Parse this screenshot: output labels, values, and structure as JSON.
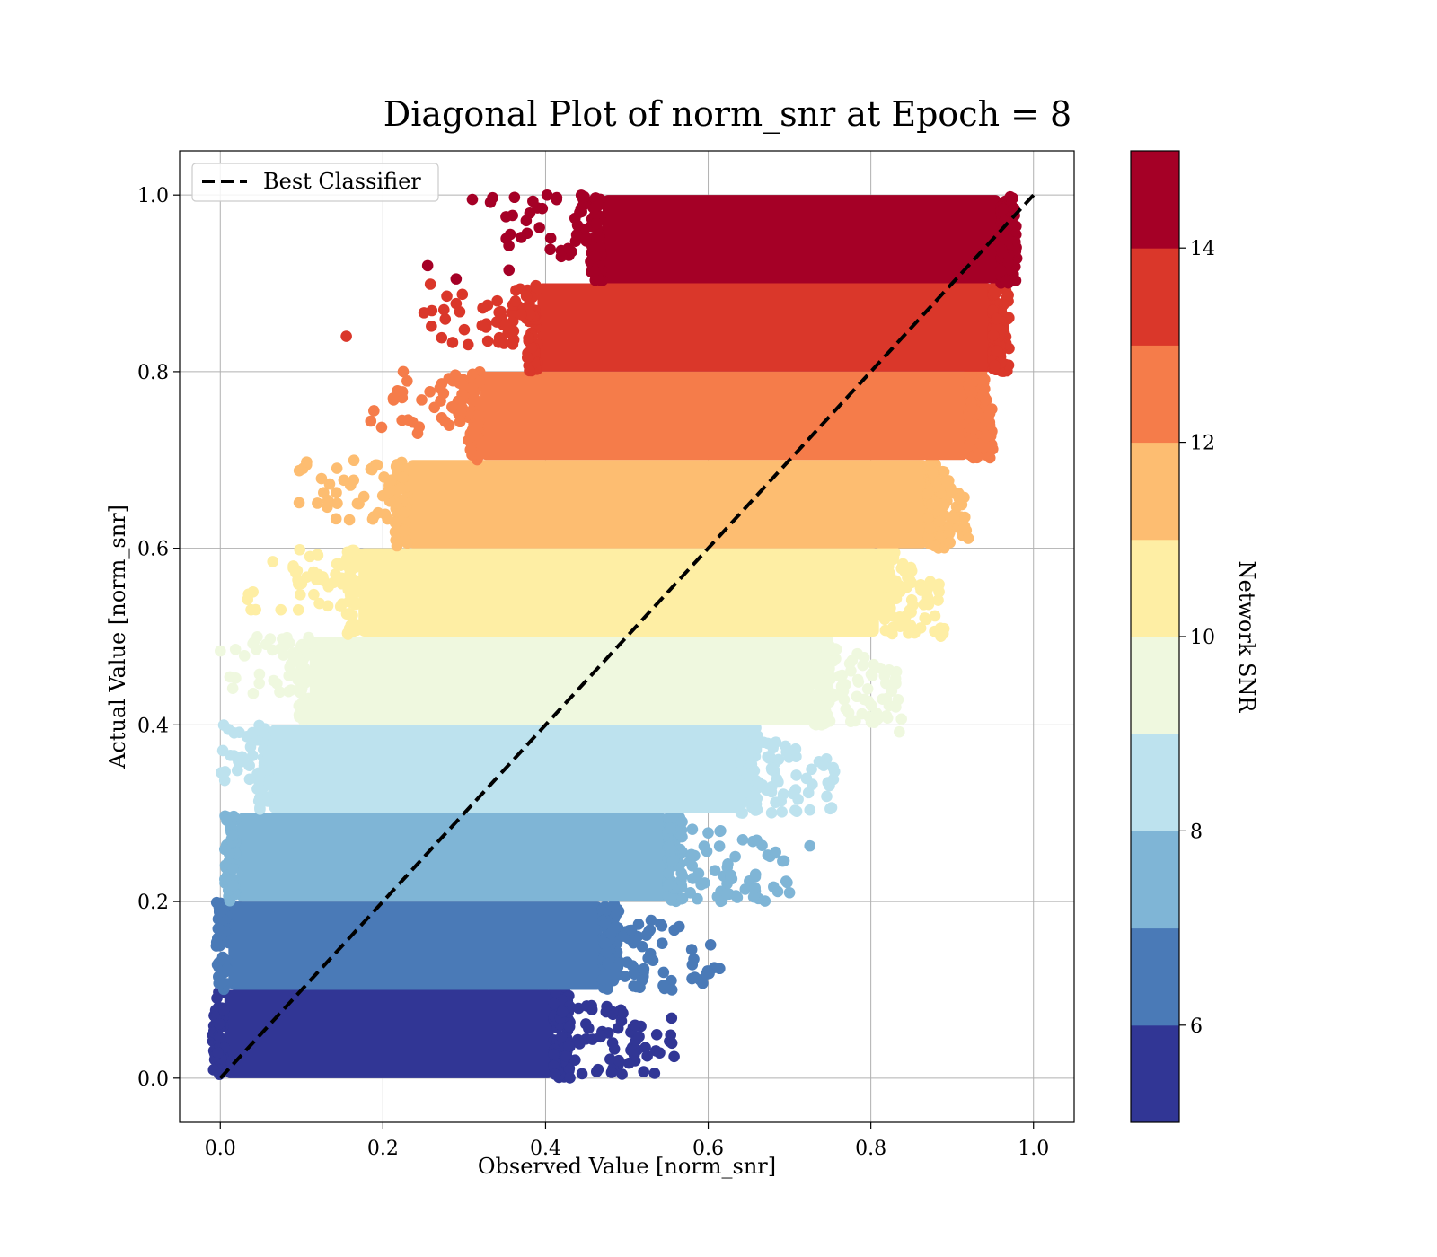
{
  "chart_data": {
    "type": "scatter",
    "title": "Diagonal Plot of norm_snr at Epoch = 8",
    "xlabel": "Observed Value [norm_snr]",
    "ylabel": "Actual Value [norm_snr]",
    "xlim": [
      -0.05,
      1.05
    ],
    "ylim": [
      -0.05,
      1.05
    ],
    "xticks": [
      "0.0",
      "0.2",
      "0.4",
      "0.6",
      "0.8",
      "1.0"
    ],
    "yticks": [
      "0.0",
      "0.2",
      "0.4",
      "0.6",
      "0.8",
      "1.0"
    ],
    "grid": true,
    "legend": {
      "position": "upper-left",
      "entries": [
        "Best Classifier"
      ]
    },
    "reference_line": {
      "name": "Best Classifier",
      "style": "dashed",
      "color": "#000000",
      "x": [
        0,
        1
      ],
      "y": [
        0,
        1
      ]
    },
    "colorbar": {
      "label": "Network SNR",
      "range": [
        5,
        15
      ],
      "ticks": [
        "6",
        "8",
        "10",
        "12",
        "14"
      ],
      "tick_values": [
        6,
        8,
        10,
        12,
        14
      ],
      "colors": [
        "#313695",
        "#4a7ab7",
        "#7fb5d6",
        "#bde2ee",
        "#eff8df",
        "#feeea4",
        "#fdbd71",
        "#f57c4a",
        "#da372a",
        "#a50026"
      ]
    },
    "bands": [
      {
        "y_range": [
          0.0,
          0.1
        ],
        "x_core": [
          0.005,
          0.41
        ],
        "x_tail": 0.56,
        "snr": 5.5
      },
      {
        "y_range": [
          0.1,
          0.2
        ],
        "x_core": [
          0.01,
          0.47
        ],
        "x_tail": 0.62,
        "snr": 6.5
      },
      {
        "y_range": [
          0.2,
          0.3
        ],
        "x_core": [
          0.02,
          0.55
        ],
        "x_tail": 0.7,
        "snr": 7.5
      },
      {
        "y_range": [
          0.3,
          0.4
        ],
        "x_core": [
          0.06,
          0.64
        ],
        "x_tail": 0.76,
        "snr": 8.5
      },
      {
        "y_range": [
          0.4,
          0.5
        ],
        "x_core": [
          0.11,
          0.73
        ],
        "x_tail": 0.84,
        "snr": 9.5
      },
      {
        "y_range": [
          0.5,
          0.6
        ],
        "x_core": [
          0.17,
          0.81
        ],
        "x_tail": 0.89,
        "snr": 10.5
      },
      {
        "y_range": [
          0.6,
          0.7
        ],
        "x_core": [
          0.23,
          0.87
        ],
        "x_tail": 0.92,
        "snr": 11.5
      },
      {
        "y_range": [
          0.7,
          0.8
        ],
        "x_core": [
          0.32,
          0.92
        ],
        "x_tail": 0.95,
        "snr": 12.5
      },
      {
        "y_range": [
          0.8,
          0.9
        ],
        "x_core": [
          0.39,
          0.95
        ],
        "x_tail": 0.96,
        "snr": 13.5
      },
      {
        "y_range": [
          0.9,
          1.0
        ],
        "x_core": [
          0.47,
          0.96
        ],
        "x_tail": 0.97,
        "snr": 14.5
      }
    ],
    "outliers": [
      {
        "x": 0.31,
        "y": 0.995,
        "snr": 14.5
      },
      {
        "x": 0.255,
        "y": 0.92,
        "snr": 14.5
      },
      {
        "x": 0.37,
        "y": 0.952,
        "snr": 14.5
      },
      {
        "x": 0.29,
        "y": 0.905,
        "snr": 14.5
      },
      {
        "x": 0.355,
        "y": 0.915,
        "snr": 14.5
      },
      {
        "x": 0.155,
        "y": 0.84,
        "snr": 13.5
      },
      {
        "x": 0.29,
        "y": 0.877,
        "snr": 13.5
      },
      {
        "x": 0.275,
        "y": 0.87,
        "snr": 13.5
      },
      {
        "x": 0.345,
        "y": 0.868,
        "snr": 13.5
      },
      {
        "x": 0.225,
        "y": 0.8,
        "snr": 12.5
      },
      {
        "x": 0.185,
        "y": 0.744,
        "snr": 12.5
      },
      {
        "x": 0.285,
        "y": 0.76,
        "snr": 12.5
      },
      {
        "x": 0.12,
        "y": 0.592,
        "snr": 10.5
      },
      {
        "x": 0.1,
        "y": 0.56,
        "snr": 10.5
      },
      {
        "x": 0.01,
        "y": 0.395,
        "snr": 8.5
      },
      {
        "x": 0.835,
        "y": 0.392,
        "snr": 9.5
      },
      {
        "x": 0.75,
        "y": 0.305,
        "snr": 8.5
      },
      {
        "x": 0.725,
        "y": 0.263,
        "snr": 7.5
      },
      {
        "x": 0.7,
        "y": 0.21,
        "snr": 7.5
      },
      {
        "x": 0.555,
        "y": 0.068,
        "snr": 5.5
      },
      {
        "x": 0.525,
        "y": 0.025,
        "snr": 5.5
      },
      {
        "x": 0.51,
        "y": 0.06,
        "snr": 5.5
      },
      {
        "x": 0.49,
        "y": 0.02,
        "snr": 5.5
      }
    ]
  }
}
